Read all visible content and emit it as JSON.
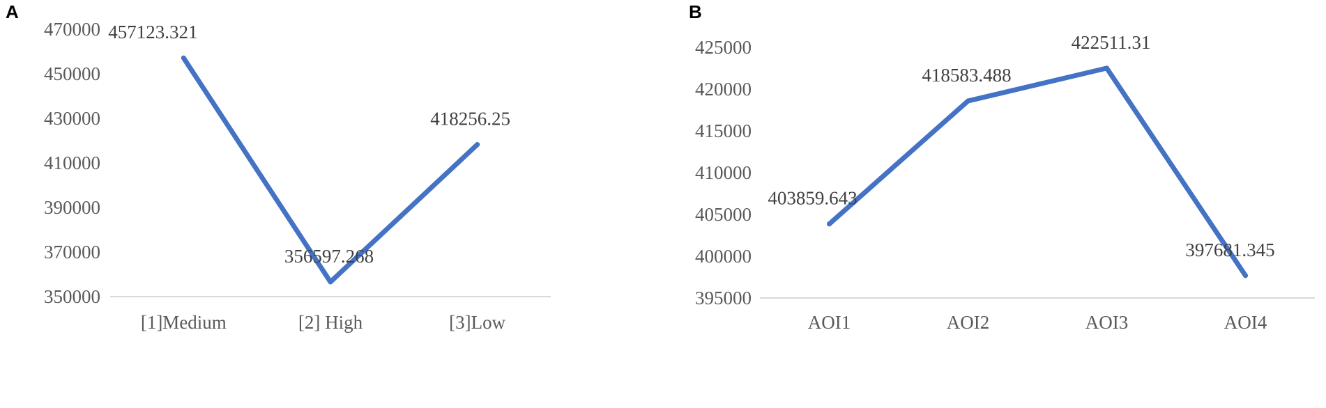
{
  "chart_data": [
    {
      "panel": "A",
      "type": "line",
      "categories": [
        "[1]Medium",
        "[2] High",
        "[3]Low"
      ],
      "series": [
        {
          "values": [
            457123.321,
            356597.268,
            418256.25
          ],
          "labels": [
            "457123.321",
            "356597.268",
            "418256.25"
          ]
        }
      ],
      "yticks": [
        "350000",
        "370000",
        "390000",
        "410000",
        "430000",
        "450000",
        "470000"
      ],
      "ylim": [
        350000,
        470000
      ],
      "grid": false,
      "color": "#4472c4"
    },
    {
      "panel": "B",
      "type": "line",
      "categories": [
        "AOI1",
        "AOI2",
        "AOI3",
        "AOI4"
      ],
      "series": [
        {
          "values": [
            403859.643,
            418583.488,
            422511.31,
            397681.345
          ],
          "labels": [
            "403859.643",
            "418583.488",
            "422511.31",
            "397681.345"
          ]
        }
      ],
      "yticks": [
        "395000",
        "400000",
        "405000",
        "410000",
        "415000",
        "420000",
        "425000"
      ],
      "ylim": [
        395000,
        425000
      ],
      "grid": false,
      "color": "#4472c4"
    }
  ]
}
